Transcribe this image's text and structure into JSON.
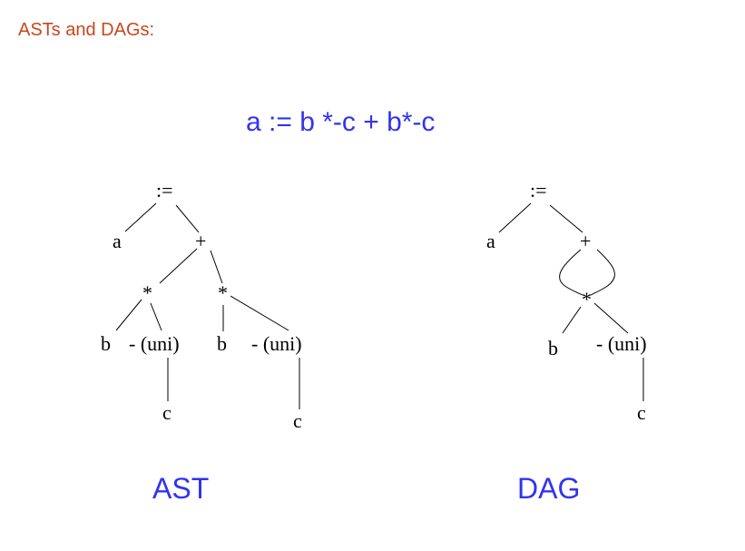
{
  "heading": "ASTs and DAGs:",
  "expression": "a := b *-c + b*-c",
  "ast": {
    "caption": "AST",
    "nodes": {
      "assign": ":=",
      "a": "a",
      "plus": "+",
      "mul1": "*",
      "mul2": "*",
      "b1": "b",
      "neg1": "- (uni)",
      "b2": "b",
      "neg2": "- (uni)",
      "c1": "c",
      "c2": "c"
    }
  },
  "dag": {
    "caption": "DAG",
    "nodes": {
      "assign": ":=",
      "a": "a",
      "plus": "+",
      "mul": "*",
      "b": "b",
      "neg": "- (uni)",
      "c": "c"
    }
  }
}
